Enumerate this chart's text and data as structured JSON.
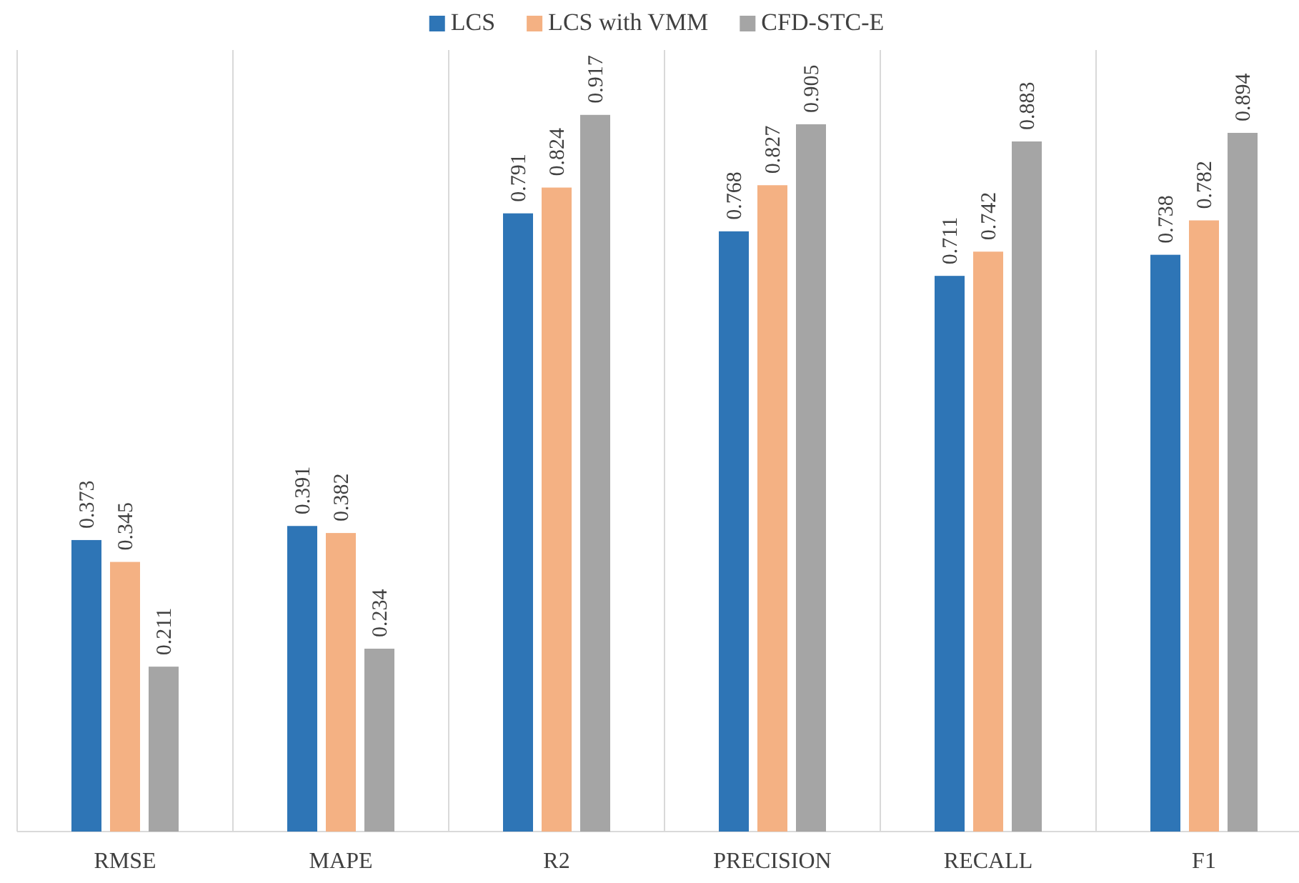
{
  "chart_data": {
    "type": "bar",
    "categories": [
      "RMSE",
      "MAPE",
      "R2",
      "PRECISION",
      "RECALL",
      "F1"
    ],
    "ylim": [
      0,
      1
    ],
    "data_labels": true,
    "legend": "top",
    "grid": "x",
    "series": [
      {
        "name": "LCS",
        "color": "#2e75b6",
        "values": [
          0.373,
          0.391,
          0.791,
          0.768,
          0.711,
          0.738
        ]
      },
      {
        "name": "LCS with VMM",
        "color": "#f4b183",
        "values": [
          0.345,
          0.382,
          0.824,
          0.827,
          0.742,
          0.782
        ]
      },
      {
        "name": "CFD-STC-E",
        "color": "#a5a5a5",
        "values": [
          0.211,
          0.234,
          0.917,
          0.905,
          0.883,
          0.894
        ]
      }
    ]
  }
}
